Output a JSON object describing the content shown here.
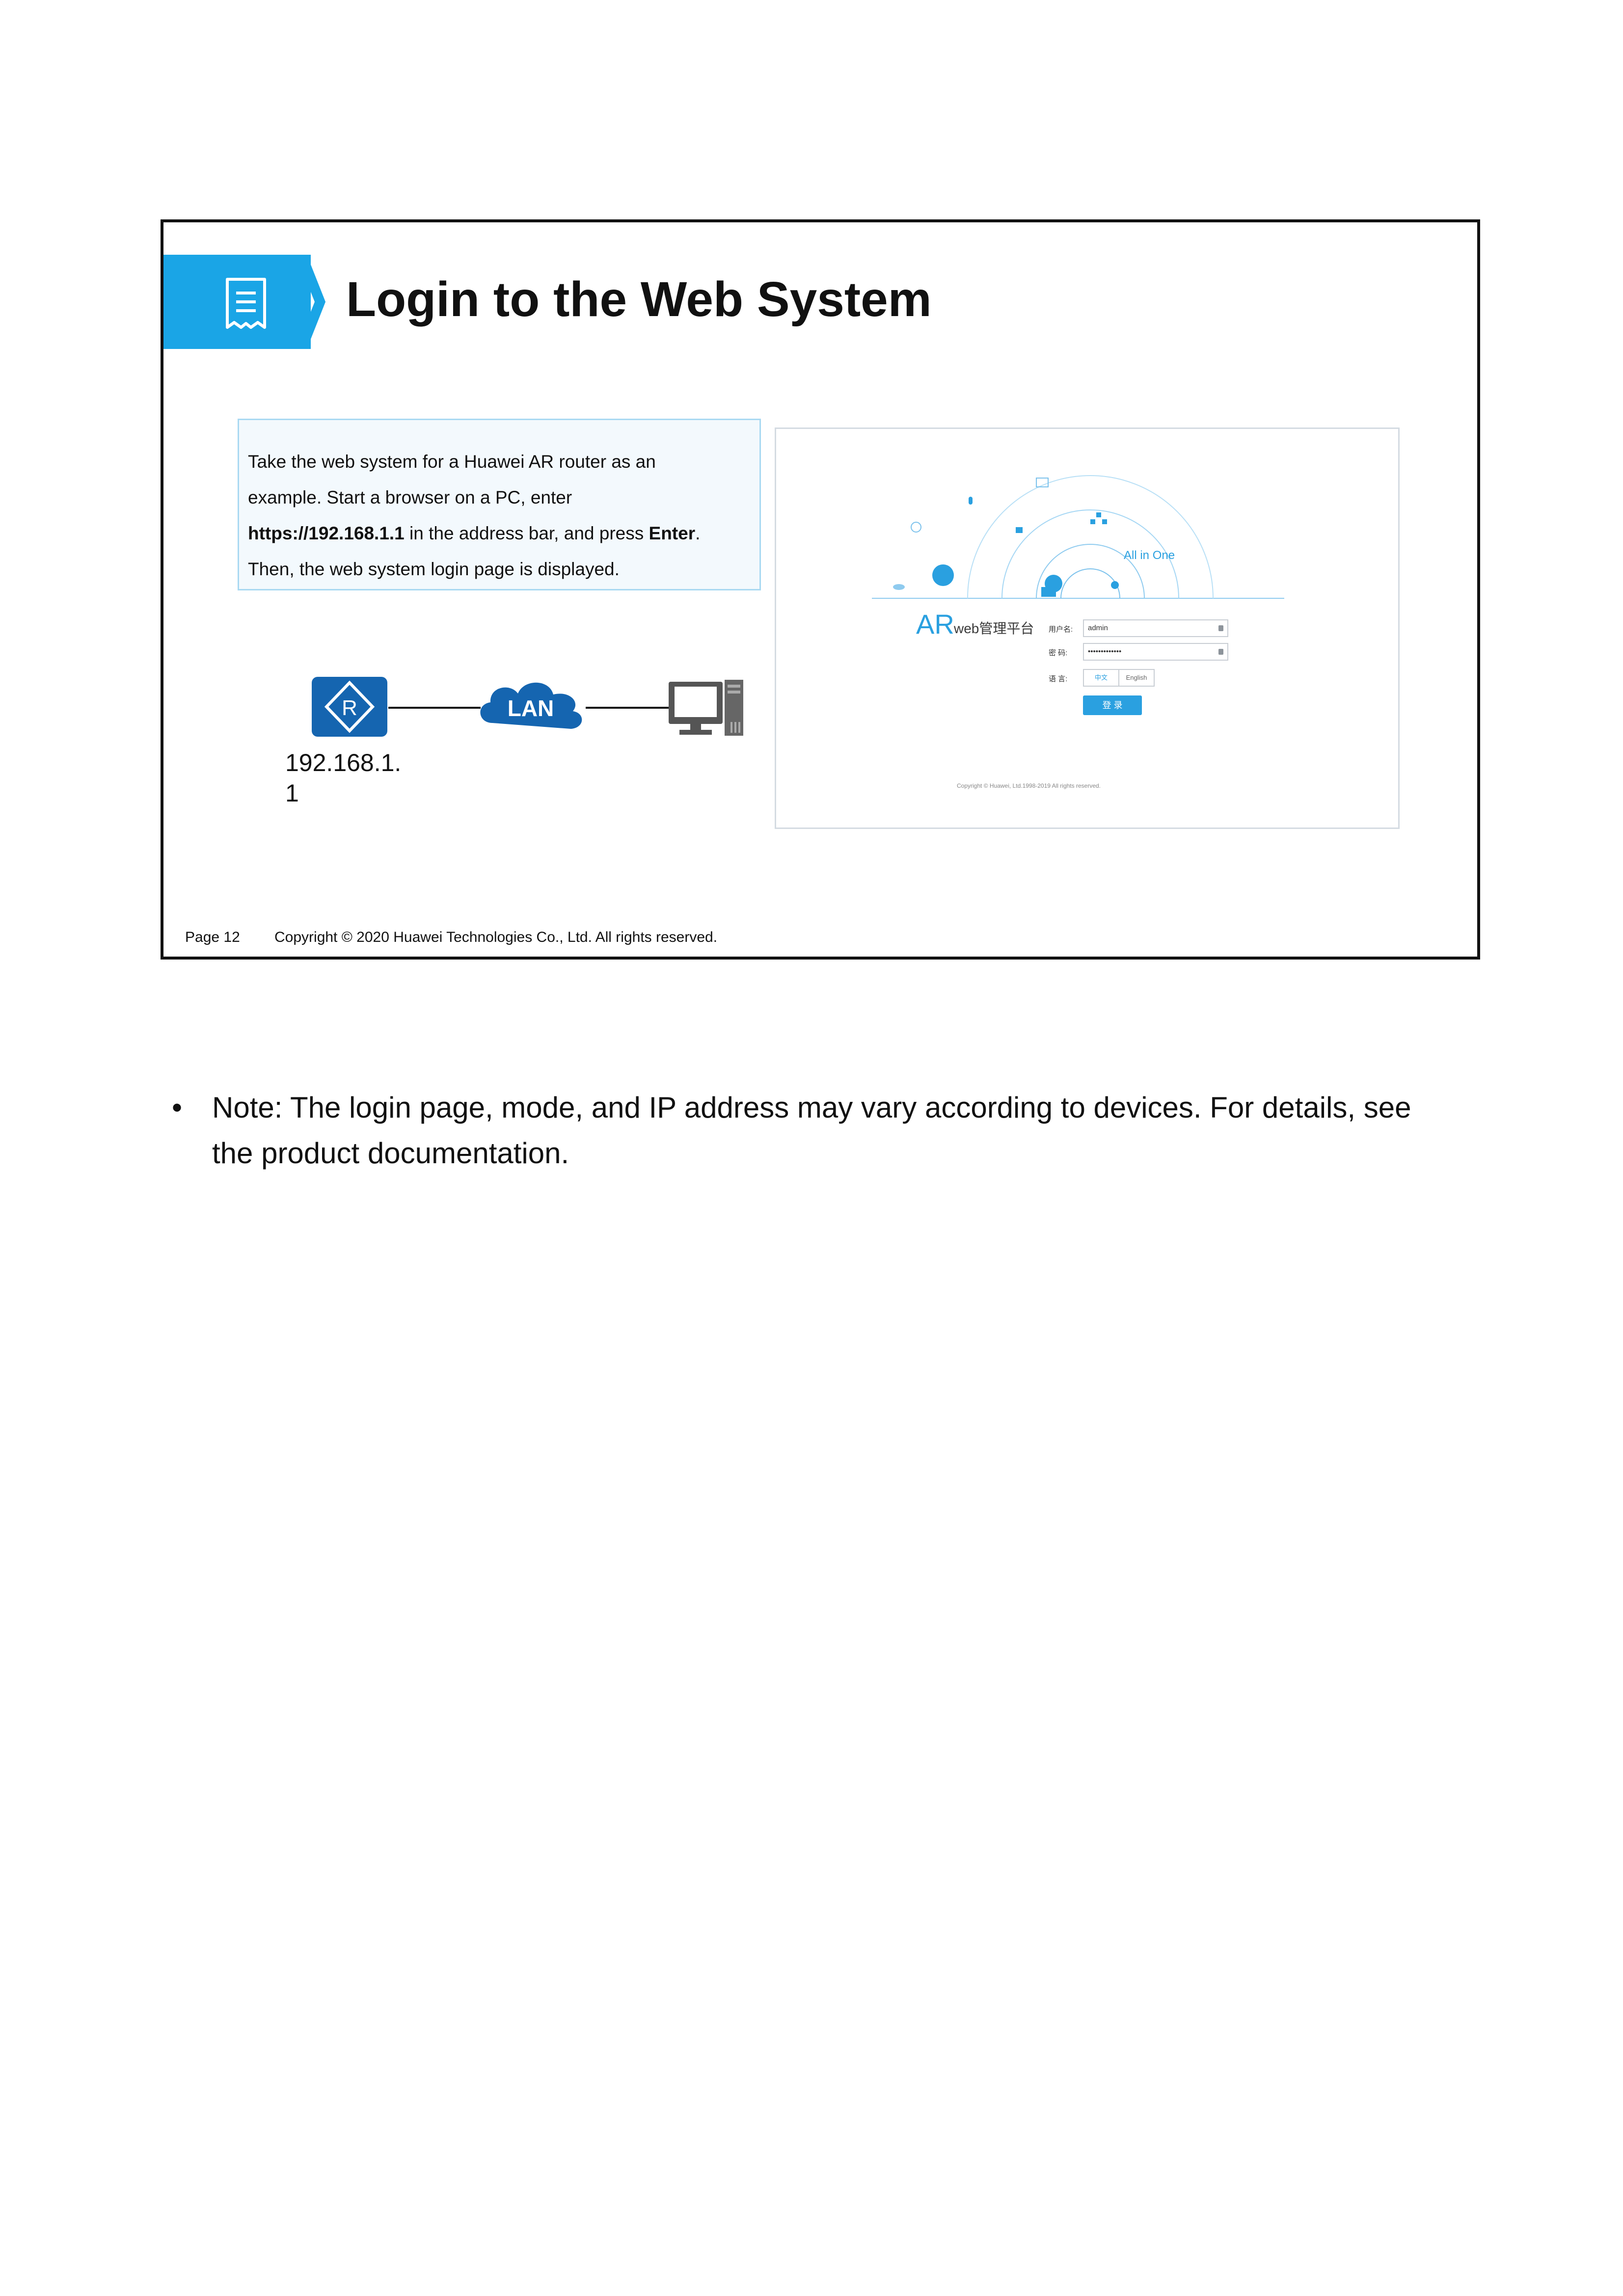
{
  "slide": {
    "title": "Login to the Web System",
    "info": {
      "line1": "Take the web system for a Huawei AR router as an",
      "line2": "example. Start a browser on a PC, enter",
      "url": "https://192.168.1.1",
      "line3_mid": " in the address bar, and press ",
      "key": "Enter",
      "line3_end": ".",
      "line4": "Then, the web system login page is displayed."
    },
    "diagram": {
      "router_letter": "R",
      "lan_label": "LAN",
      "ip_line1": "192.168.1.",
      "ip_line2": "1",
      "icons": [
        "router-icon",
        "lan-cloud-icon",
        "pc-icon"
      ]
    },
    "login_screenshot": {
      "all_in_one": "All in One",
      "logo_ar": "AR",
      "logo_sub": "web管理平台",
      "username_label": "用户名:",
      "username_value": "admin",
      "password_label": "密  码:",
      "password_value": "•••••••••••••",
      "language_label": "语  言:",
      "lang_cn": "中文",
      "lang_en": "English",
      "login_button": "登 录",
      "copyright": "Copyright © Huawei, Ltd.1998-2019 All rights reserved.",
      "accent_color": "#2aa0e0"
    },
    "footer": {
      "page": "Page 12",
      "copyright": "Copyright © 2020 Huawei Technologies Co., Ltd. All rights reserved."
    },
    "banner_color": "#1aa5e6"
  },
  "note": {
    "bullet": "•",
    "text": "Note: The login page, mode, and IP address may vary according to devices. For details, see the product documentation."
  }
}
